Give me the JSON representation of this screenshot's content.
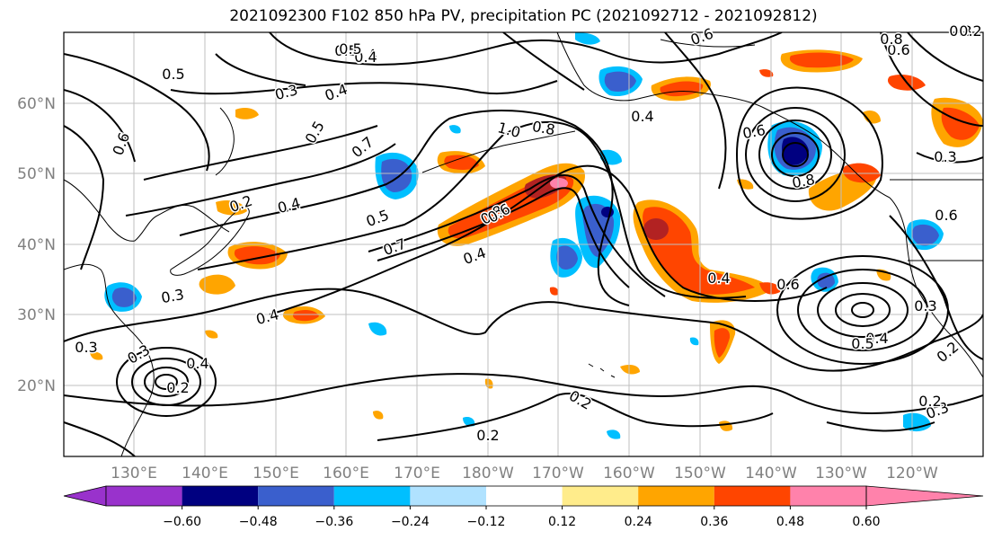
{
  "title": "2021092300 F102 850 hPa PV, precipitation PC (2021092712 - 2021092812)",
  "map": {
    "lon_labels": [
      "130°E",
      "140°E",
      "150°E",
      "160°E",
      "170°E",
      "180°W",
      "170°W",
      "160°W",
      "150°W",
      "140°W",
      "130°W",
      "120°W"
    ],
    "lat_labels": [
      "60°N",
      "50°N",
      "40°N",
      "30°N",
      "20°N"
    ],
    "contour_labels": [
      "0.5",
      "0.4",
      "0.3",
      "0.4",
      "0.5",
      "0.7",
      "0.6",
      "0.2",
      "0.4",
      "0.5",
      "0.7",
      "0.8",
      "0.4",
      "1.0",
      "0.8",
      "0.6",
      "0.4",
      "0.6",
      "0.8",
      "0.4",
      "0.6",
      "0.3",
      "0.3",
      "0.4",
      "0.2",
      "0.3",
      "0.2",
      "0.3",
      "0.6",
      "0.4",
      "0.5",
      "0.5",
      "0.6",
      "0.8",
      "0.6",
      "0.3",
      "0.4",
      "0.3",
      "0.5",
      "0.2",
      "0.3",
      "0.2",
      "0.4",
      "0.2",
      "0.2"
    ]
  },
  "colorbar": {
    "ticks": [
      "−0.60",
      "−0.48",
      "−0.36",
      "−0.24",
      "−0.12",
      "0.12",
      "0.24",
      "0.36",
      "0.48",
      "0.60"
    ],
    "colors": [
      "#9932cc",
      "#000080",
      "#3a5fcd",
      "#00bfff",
      "#b0e2ff",
      "#ffffff",
      "#ffec8b",
      "#ffa500",
      "#ff4500",
      "#b22222",
      "#ff82ab"
    ]
  },
  "colors": {
    "contour": "#000000",
    "coast": "#000000",
    "grid": "#bfbfbf"
  }
}
